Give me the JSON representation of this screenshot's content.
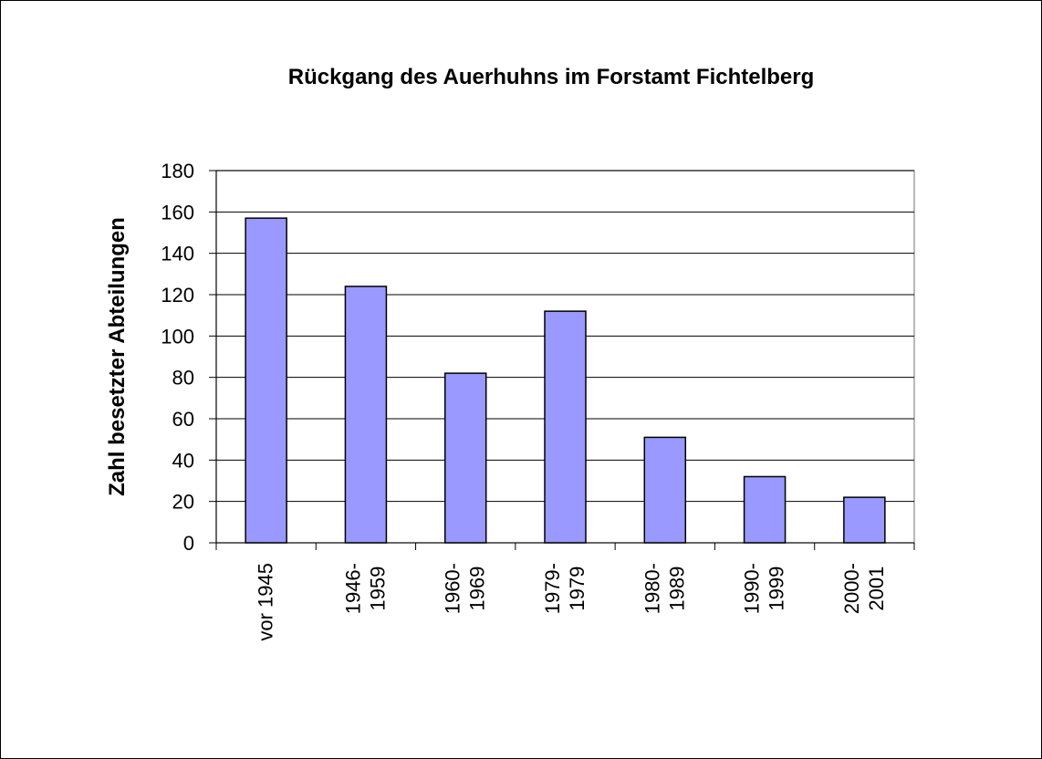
{
  "chart_data": {
    "type": "bar",
    "title": "Rückgang des Auerhuhns im Forstamt Fichtelberg",
    "y_label": "Zahl besetzter Abteilungen",
    "categories": [
      "vor 1945",
      "1946-\n1959",
      "1960-\n1969",
      "1979-\n1979",
      "1980-\n1989",
      "1990-\n1999",
      "2000-\n2001"
    ],
    "values": [
      157,
      124,
      82,
      112,
      51,
      32,
      22
    ],
    "color": "#9999ff",
    "ylim": [
      0,
      180
    ],
    "yticks": [
      0,
      20,
      40,
      60,
      80,
      100,
      120,
      140,
      160,
      180
    ],
    "grid": true
  }
}
